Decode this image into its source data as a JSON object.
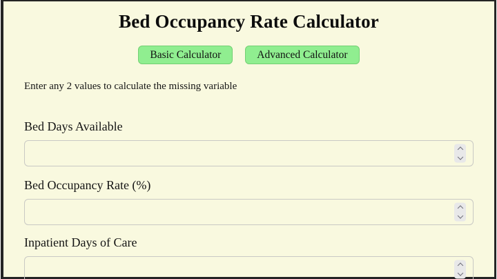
{
  "page": {
    "title": "Bed Occupancy Rate Calculator",
    "instruction": "Enter any 2 values to calculate the missing variable"
  },
  "tabs": [
    {
      "label": "Basic Calculator"
    },
    {
      "label": "Advanced Calculator"
    }
  ],
  "fields": [
    {
      "label": "Bed Days Available",
      "value": "",
      "type": "number"
    },
    {
      "label": "Bed Occupancy Rate (%)",
      "value": "",
      "type": "number"
    },
    {
      "label": "Inpatient Days of Care",
      "value": "",
      "type": "number"
    }
  ],
  "colors": {
    "page_background": "#f9f9df",
    "frame_border": "#242424",
    "button_background": "#90ee90",
    "button_border": "#72cf72",
    "input_border": "#c9c9c4",
    "spinner_background": "#e8e8e9"
  },
  "icons": {
    "stepper_up": "chevron-up",
    "stepper_down": "chevron-down"
  }
}
